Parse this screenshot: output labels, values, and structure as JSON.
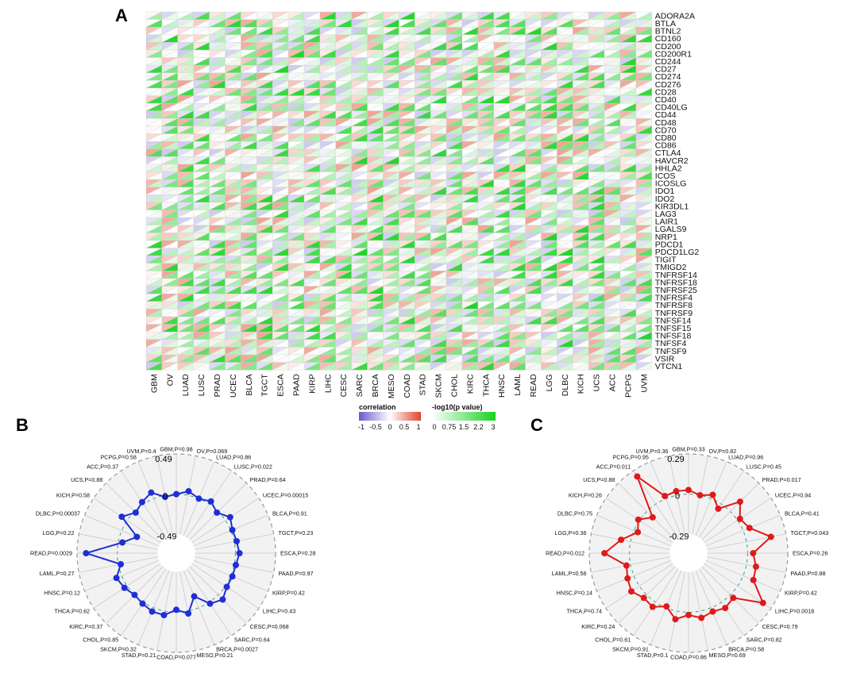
{
  "panels": {
    "a": "A",
    "b": "B",
    "c": "C"
  },
  "colors": {
    "cor_neg": "#6a5acd",
    "cor_mid": "#ffffff",
    "cor_pos": "#e0432b",
    "p_low": "#ffffff",
    "p_high": "#17d21f",
    "radar_b": "#1f2fd6",
    "radar_c": "#e01a1a",
    "radar_bg": "#f2f2f2",
    "radar_circle": "#3a9d88"
  },
  "chart_data": [
    {
      "type": "heatmap",
      "title": "",
      "genes": [
        "ADORA2A",
        "BTLA",
        "BTNL2",
        "CD160",
        "CD200",
        "CD200R1",
        "CD244",
        "CD27",
        "CD274",
        "CD276",
        "CD28",
        "CD40",
        "CD40LG",
        "CD44",
        "CD48",
        "CD70",
        "CD80",
        "CD86",
        "CTLA4",
        "HAVCR2",
        "HHLA2",
        "ICOS",
        "ICOSLG",
        "IDO1",
        "IDO2",
        "KIR3DL1",
        "LAG3",
        "LAIR1",
        "LGALS9",
        "NRP1",
        "PDCD1",
        "PDCD1LG2",
        "TIGIT",
        "TMIGD2",
        "TNFRSF14",
        "TNFRSF18",
        "TNFRSF25",
        "TNFRSF4",
        "TNFRSF8",
        "TNFRSF9",
        "TNFSF14",
        "TNFSF15",
        "TNFSF18",
        "TNFSF4",
        "TNFSF9",
        "VSIR",
        "VTCN1"
      ],
      "cancers": [
        "GBM",
        "OV",
        "LUAD",
        "LUSC",
        "PRAD",
        "UCEC",
        "BLCA",
        "TGCT",
        "ESCA",
        "PAAD",
        "KIRP",
        "LIHC",
        "CESC",
        "SARC",
        "BRCA",
        "MESO",
        "COAD",
        "STAD",
        "SKCM",
        "CHOL",
        "KIRC",
        "THCA",
        "HNSC",
        "LAML",
        "READ",
        "LGG",
        "DLBC",
        "KICH",
        "UCS",
        "ACC",
        "PCPG",
        "UVM"
      ],
      "legend": {
        "correlation": {
          "title": "correlation",
          "ticks": [
            "-1",
            "-0.5",
            "0",
            "0.5",
            "1"
          ]
        },
        "pvalue": {
          "title": "-log10(p value)",
          "ticks": [
            "0",
            "0.75",
            "1.5",
            "2.2",
            "3"
          ]
        }
      }
    },
    {
      "type": "radar",
      "ring_labels": {
        "outer": "0.49",
        "middle": "0",
        "inner": "-0.49"
      },
      "range": [
        -0.49,
        0.49
      ],
      "categories": [
        "GBM,P=0.98",
        "OV,P=0.069",
        "LUAD,P=0.86",
        "LUSC,P=0.022",
        "PRAD,P=0.64",
        "UCEC,P=0.00015",
        "BLCA,P=0.91",
        "TGCT,P=0.23",
        "ESCA,P=0.28",
        "PAAD,P=0.97",
        "KIRP,P=0.42",
        "LIHC,P=0.43",
        "CESC,P=0.068",
        "SARC,P=0.64",
        "BRCA,P=0.0027",
        "MESO,P=0.21",
        "COAD,P=0.077",
        "STAD,P=0.21",
        "SKCM,P=0.32",
        "CHOL,P=0.85",
        "KIRC,P=0.37",
        "THCA,P=0.62",
        "HNSC,P=0.12",
        "LAML,P=0.27",
        "READ,P=0.0029",
        "LGG,P=0.22",
        "DLBC,P=0.00037",
        "KICH,P=0.58",
        "UCS,P=0.88",
        "ACC,P=0.37",
        "PCPG,P=0.58",
        "UVM,P=0.4"
      ],
      "values": [
        0.0,
        0.05,
        0.0,
        0.04,
        -0.02,
        0.07,
        0.02,
        0.03,
        0.05,
        0.02,
        0.02,
        0.02,
        0.08,
        0.02,
        -0.15,
        0.03,
        -0.03,
        0.05,
        0.05,
        0.02,
        0.0,
        0.04,
        0.07,
        -0.03,
        0.38,
        -0.05,
        -0.2,
        0.08,
        -0.02,
        0.03,
        0.08,
        -0.02
      ]
    },
    {
      "type": "radar",
      "ring_labels": {
        "outer": "0.29",
        "middle": "0",
        "inner": "-0.29"
      },
      "range": [
        -0.29,
        0.29
      ],
      "categories": [
        "GBM,P=0.33",
        "OV,P=0.82",
        "LUAD,P=0.96",
        "LUSC,P=0.45",
        "PRAD,P=0.017",
        "UCEC,P=0.94",
        "BLCA,P=0.41",
        "TGCT,P=0.043",
        "ESCA,P=0.26",
        "PAAD,P=0.88",
        "KIRP,P=0.42",
        "LIHC,P=0.0018",
        "CESC,P=0.79",
        "SARC,P=0.82",
        "BRCA,P=0.58",
        "MESO,P=0.69",
        "COAD,P=0.86",
        "STAD,P=0.1",
        "SKCM,P=0.91",
        "CHOL,P=0.61",
        "KIRC,P=0.24",
        "THCA,P=0.74",
        "HNSC,P=0.14",
        "LAML,P=0.56",
        "READ,P=0.012",
        "LGG,P=0.36",
        "DLBC,P=0.75",
        "KICH,P=0.26",
        "UCS,P=0.88",
        "ACC,P=0.011",
        "PCPG,P=0.95",
        "UVM,P=0.36"
      ],
      "values": [
        0.03,
        0.0,
        0.03,
        -0.04,
        0.1,
        0.02,
        0.05,
        0.18,
        0.04,
        0.07,
        0.08,
        0.22,
        0.03,
        0.05,
        0.03,
        0.05,
        0.02,
        0.06,
        -0.01,
        0.04,
        0.03,
        0.07,
        0.05,
        0.03,
        0.18,
        0.07,
        -0.03,
        0.01,
        -0.06,
        0.24,
        0.02,
        0.03
      ]
    }
  ]
}
